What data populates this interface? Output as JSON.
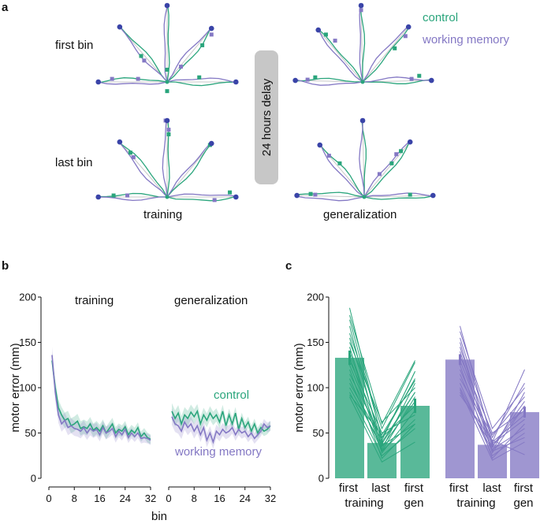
{
  "colors": {
    "control": "#2aa57c",
    "working_memory": "#8478c4",
    "target": "#3a44a8",
    "grey": "#c8c8c8",
    "axis": "#111111"
  },
  "panel_a": {
    "letter": "a",
    "row_labels": [
      "first bin",
      "last bin"
    ],
    "col_labels": [
      "training",
      "generalization"
    ],
    "delay_label": "24 hours delay",
    "legend": [
      "control",
      "working memory"
    ],
    "center": [
      0,
      0
    ],
    "training_targets": [
      [
        -90,
        0
      ],
      [
        -62,
        72
      ],
      [
        0,
        100
      ],
      [
        58,
        70
      ],
      [
        90,
        0
      ]
    ],
    "generalization_targets": [
      [
        -88,
        2
      ],
      [
        -58,
        68
      ],
      [
        -2,
        100
      ],
      [
        60,
        72
      ],
      [
        90,
        2
      ]
    ],
    "control_endpoints": {
      "first_training": [
        [
          -34,
          34
        ],
        [
          0,
          16
        ],
        [
          46,
          48
        ],
        [
          42,
          6
        ],
        [
          0,
          -12
        ]
      ],
      "first_generalization": [
        [
          -48,
          62
        ],
        [
          -2,
          100
        ],
        [
          42,
          44
        ],
        [
          74,
          8
        ],
        [
          -62,
          6
        ]
      ],
      "last_training": [
        [
          -48,
          58
        ],
        [
          2,
          82
        ],
        [
          82,
          6
        ],
        [
          56,
          68
        ],
        [
          -70,
          2
        ]
      ],
      "last_generalization": [
        [
          -32,
          44
        ],
        [
          48,
          60
        ],
        [
          36,
          44
        ],
        [
          60,
          3
        ],
        [
          -70,
          4
        ]
      ]
    },
    "wm_endpoints": {
      "first_training": [
        [
          -30,
          28
        ],
        [
          18,
          20
        ],
        [
          -38,
          4
        ],
        [
          58,
          62
        ],
        [
          -72,
          4
        ]
      ],
      "first_generalization": [
        [
          -36,
          54
        ],
        [
          56,
          60
        ],
        [
          -72,
          3
        ],
        [
          -2,
          94
        ],
        [
          64,
          4
        ]
      ],
      "last_training": [
        [
          -44,
          52
        ],
        [
          2,
          88
        ],
        [
          62,
          -4
        ],
        [
          -52,
          2
        ],
        [
          -2,
          100
        ]
      ],
      "last_generalization": [
        [
          -46,
          54
        ],
        [
          -2,
          100
        ],
        [
          20,
          30
        ],
        [
          42,
          56
        ],
        [
          -64,
          3
        ]
      ]
    }
  },
  "panel_b": {
    "letter": "b",
    "ylabel": "motor error (mm)",
    "xlabel": "bin",
    "yticks": [
      0,
      50,
      100,
      150,
      200
    ],
    "xticks": [
      0,
      8,
      16,
      24,
      32
    ],
    "subtitles": [
      "training",
      "generalization"
    ],
    "legend": [
      "control",
      "working memory"
    ]
  },
  "panel_c": {
    "letter": "c",
    "ylabel": "motor error (mm)",
    "yticks": [
      0,
      50,
      100,
      150,
      200
    ],
    "groups": [
      {
        "name": "control",
        "labels": [
          "first",
          "last",
          "first"
        ],
        "sublabels": [
          "training",
          "",
          "gen"
        ]
      },
      {
        "name": "working memory",
        "labels": [
          "first",
          "last",
          "first"
        ],
        "sublabels": [
          "training",
          "",
          "gen"
        ]
      }
    ]
  },
  "chart_data": [
    {
      "type": "line",
      "title": "training",
      "xlabel": "bin",
      "ylabel": "motor error (mm)",
      "xlim": [
        0,
        32
      ],
      "ylim": [
        0,
        200
      ],
      "series": [
        {
          "name": "control",
          "x": [
            1,
            2,
            3,
            4,
            5,
            6,
            7,
            8,
            9,
            10,
            11,
            12,
            13,
            14,
            15,
            16,
            17,
            18,
            19,
            20,
            21,
            22,
            23,
            24,
            25,
            26,
            27,
            28,
            29,
            30,
            31,
            32
          ],
          "values": [
            130,
            100,
            78,
            70,
            64,
            66,
            58,
            60,
            63,
            55,
            57,
            55,
            60,
            53,
            56,
            52,
            58,
            50,
            55,
            60,
            50,
            54,
            52,
            57,
            48,
            53,
            50,
            56,
            46,
            50,
            45,
            43
          ]
        },
        {
          "name": "working memory",
          "x": [
            1,
            2,
            3,
            4,
            5,
            6,
            7,
            8,
            9,
            10,
            11,
            12,
            13,
            14,
            15,
            16,
            17,
            18,
            19,
            20,
            21,
            22,
            23,
            24,
            25,
            26,
            27,
            28,
            29,
            30,
            31,
            32
          ],
          "values": [
            136,
            95,
            70,
            60,
            64,
            56,
            58,
            55,
            54,
            52,
            56,
            50,
            55,
            52,
            54,
            48,
            56,
            50,
            52,
            55,
            46,
            52,
            48,
            54,
            45,
            50,
            46,
            50,
            44,
            45,
            44,
            42
          ]
        }
      ]
    },
    {
      "type": "line",
      "title": "generalization",
      "xlabel": "bin",
      "ylabel": "motor error (mm)",
      "xlim": [
        0,
        32
      ],
      "ylim": [
        0,
        200
      ],
      "series": [
        {
          "name": "control",
          "x": [
            1,
            2,
            3,
            4,
            5,
            6,
            7,
            8,
            9,
            10,
            11,
            12,
            13,
            14,
            15,
            16,
            17,
            18,
            19,
            20,
            21,
            22,
            23,
            24,
            25,
            26,
            27,
            28,
            29,
            30,
            31,
            32
          ],
          "values": [
            74,
            66,
            72,
            60,
            70,
            66,
            73,
            68,
            74,
            60,
            70,
            64,
            72,
            66,
            70,
            62,
            74,
            58,
            70,
            60,
            72,
            54,
            66,
            56,
            62,
            52,
            60,
            50,
            56,
            52,
            54,
            58
          ]
        },
        {
          "name": "working memory",
          "x": [
            1,
            2,
            3,
            4,
            5,
            6,
            7,
            8,
            9,
            10,
            11,
            12,
            13,
            14,
            15,
            16,
            17,
            18,
            19,
            20,
            21,
            22,
            23,
            24,
            25,
            26,
            27,
            28,
            29,
            30,
            31,
            32
          ],
          "values": [
            68,
            60,
            58,
            52,
            62,
            56,
            60,
            52,
            58,
            48,
            56,
            42,
            50,
            40,
            52,
            48,
            54,
            50,
            52,
            56,
            48,
            54,
            50,
            52,
            46,
            50,
            44,
            48,
            52,
            60,
            56,
            58
          ]
        }
      ]
    },
    {
      "type": "bar",
      "title": "",
      "ylabel": "motor error (mm)",
      "ylim": [
        0,
        200
      ],
      "categories": [
        "first training",
        "last training",
        "first gen"
      ],
      "series": [
        {
          "name": "control",
          "values": [
            133,
            39,
            80
          ],
          "errors": [
            8,
            3,
            8
          ],
          "subjects": [
            [
              188,
              42,
              118
            ],
            [
              180,
              60,
              130
            ],
            [
              175,
              45,
              110
            ],
            [
              168,
              32,
              105
            ],
            [
              160,
              55,
              128
            ],
            [
              155,
              40,
              95
            ],
            [
              150,
              62,
              100
            ],
            [
              145,
              30,
              90
            ],
            [
              140,
              35,
              85
            ],
            [
              135,
              28,
              75
            ],
            [
              130,
              50,
              70
            ],
            [
              125,
              38,
              95
            ],
            [
              120,
              22,
              60
            ],
            [
              115,
              45,
              80
            ],
            [
              110,
              30,
              65
            ],
            [
              105,
              42,
              118
            ],
            [
              100,
              36,
              60
            ],
            [
              95,
              25,
              55
            ],
            [
              92,
              48,
              108
            ],
            [
              90,
              18,
              40
            ]
          ]
        },
        {
          "name": "working memory",
          "values": [
            131,
            37,
            73
          ],
          "errors": [
            6,
            3,
            6
          ],
          "subjects": [
            [
              168,
              40,
              120
            ],
            [
              162,
              55,
              100
            ],
            [
              155,
              45,
              105
            ],
            [
              150,
              30,
              95
            ],
            [
              145,
              35,
              85
            ],
            [
              140,
              28,
              80
            ],
            [
              135,
              50,
              75
            ],
            [
              130,
              40,
              70
            ],
            [
              125,
              22,
              60
            ],
            [
              120,
              38,
              65
            ],
            [
              115,
              32,
              55
            ],
            [
              110,
              48,
              90
            ],
            [
              105,
              25,
              50
            ],
            [
              100,
              30,
              45
            ],
            [
              98,
              20,
              40
            ],
            [
              95,
              35,
              80
            ],
            [
              92,
              42,
              26
            ]
          ]
        }
      ]
    }
  ]
}
